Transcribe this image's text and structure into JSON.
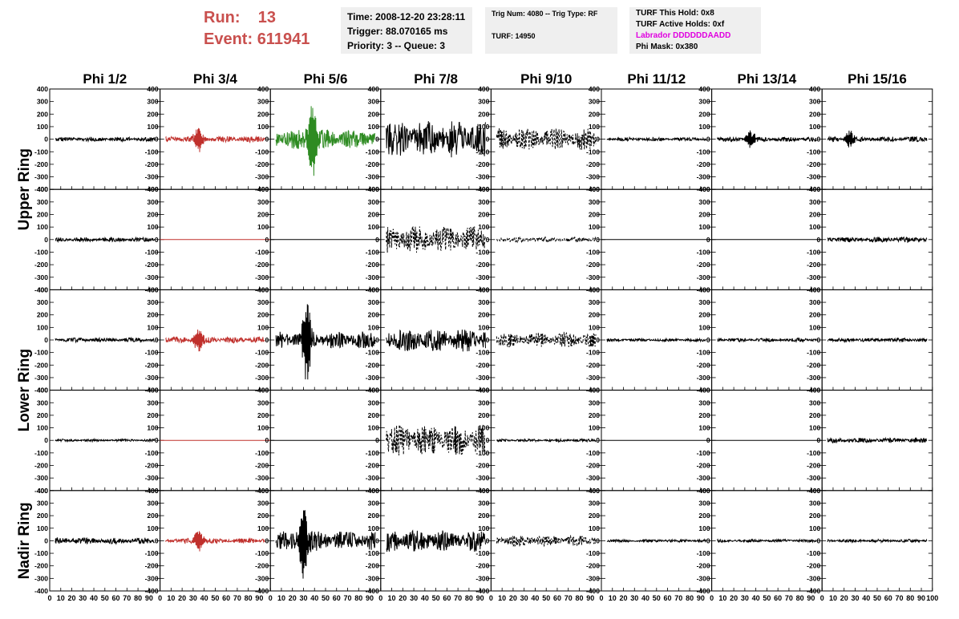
{
  "header": {
    "run_label": "Run:",
    "run_value": "13",
    "event_label": "Event:",
    "event_value": "611941",
    "time": "Time: 2008-12-20 23:28:11",
    "trigger": "Trigger: 88.070165 ms",
    "priority": "Priority: 3 -- Queue: 3",
    "trig_num": "Trig Num: 4080 -- Trig Type: RF",
    "turf": "TURF: 14950",
    "turf_hold": "TURF This Hold: 0x8",
    "turf_active": "TURF Active Holds: 0xf",
    "labrador": "Labrador DDDDDDAADD",
    "phi_mask": "Phi Mask: 0x380"
  },
  "colors": {
    "run_text": "#c9504e",
    "labrador_text": "#e000e0",
    "trace_default": "#000000",
    "trace_red": "#c0302c",
    "trace_green": "#2e8b22",
    "info_box_bg": "#efefef"
  },
  "chart_data": {
    "type": "line",
    "columns": [
      "Phi 1/2",
      "Phi 3/4",
      "Phi 5/6",
      "Phi 7/8",
      "Phi 9/10",
      "Phi 11/12",
      "Phi 13/14",
      "Phi 15/16"
    ],
    "rows": [
      "Upper Ring",
      "Lower Ring",
      "Nadir Ring"
    ],
    "panel_rows": 5,
    "xlim": [
      0,
      100
    ],
    "ylim": [
      -400,
      400
    ],
    "y_ticks": [
      "400",
      "300",
      "200",
      "100",
      "0",
      "-100",
      "-200",
      "-300",
      "-400"
    ],
    "x_ticks": [
      "0",
      "10",
      "20",
      "30",
      "40",
      "50",
      "60",
      "70",
      "80",
      "90",
      "100"
    ],
    "grid": false,
    "panels": [
      [
        {
          "amp": 18,
          "style": "solid",
          "color": "black"
        },
        {
          "amp": 25,
          "style": "solid",
          "color": "red",
          "burst": [
            35,
            90
          ]
        },
        {
          "amp": 80,
          "style": "solid",
          "color": "green",
          "burst": [
            38,
            300
          ]
        },
        {
          "amp": 150,
          "style": "solid",
          "color": "black"
        },
        {
          "amp": 90,
          "style": "dashed",
          "color": "black"
        },
        {
          "amp": 15,
          "style": "solid",
          "color": "black"
        },
        {
          "amp": 18,
          "style": "solid",
          "color": "black",
          "burst": [
            35,
            70
          ]
        },
        {
          "amp": 22,
          "style": "solid",
          "color": "black",
          "burst": [
            25,
            60
          ]
        }
      ],
      [
        {
          "amp": 18,
          "style": "solid",
          "color": "black"
        },
        {
          "amp": 0,
          "style": "solid",
          "color": "red"
        },
        {
          "amp": 0,
          "style": "solid",
          "color": "black"
        },
        {
          "amp": 110,
          "style": "dashed",
          "color": "black"
        },
        {
          "amp": 20,
          "style": "dashed",
          "color": "black"
        },
        {
          "amp": 0,
          "style": "solid",
          "color": "black"
        },
        {
          "amp": 0,
          "style": "solid",
          "color": "black"
        },
        {
          "amp": 22,
          "style": "solid",
          "color": "black"
        }
      ],
      [
        {
          "amp": 18,
          "style": "solid",
          "color": "black"
        },
        {
          "amp": 25,
          "style": "solid",
          "color": "red",
          "burst": [
            35,
            90
          ]
        },
        {
          "amp": 70,
          "style": "solid",
          "color": "black",
          "burst": [
            33,
            320
          ]
        },
        {
          "amp": 95,
          "style": "solid",
          "color": "black"
        },
        {
          "amp": 60,
          "style": "dashed",
          "color": "black"
        },
        {
          "amp": 12,
          "style": "solid",
          "color": "black"
        },
        {
          "amp": 15,
          "style": "solid",
          "color": "black"
        },
        {
          "amp": 16,
          "style": "solid",
          "color": "black"
        }
      ],
      [
        {
          "amp": 10,
          "style": "solid",
          "color": "black"
        },
        {
          "amp": 0,
          "style": "solid",
          "color": "red"
        },
        {
          "amp": 0,
          "style": "solid",
          "color": "black"
        },
        {
          "amp": 130,
          "style": "dashed",
          "color": "black"
        },
        {
          "amp": 12,
          "style": "solid",
          "color": "black"
        },
        {
          "amp": 0,
          "style": "solid",
          "color": "black"
        },
        {
          "amp": 0,
          "style": "solid",
          "color": "black"
        },
        {
          "amp": 20,
          "style": "solid",
          "color": "black"
        }
      ],
      [
        {
          "amp": 25,
          "style": "solid",
          "color": "black"
        },
        {
          "amp": 20,
          "style": "solid",
          "color": "red",
          "burst": [
            35,
            80
          ]
        },
        {
          "amp": 80,
          "style": "solid",
          "color": "black",
          "burst": [
            30,
            300
          ]
        },
        {
          "amp": 90,
          "style": "solid",
          "color": "black"
        },
        {
          "amp": 45,
          "style": "dashed",
          "color": "black"
        },
        {
          "amp": 12,
          "style": "solid",
          "color": "black"
        },
        {
          "amp": 12,
          "style": "solid",
          "color": "black"
        },
        {
          "amp": 12,
          "style": "solid",
          "color": "black"
        }
      ]
    ]
  }
}
